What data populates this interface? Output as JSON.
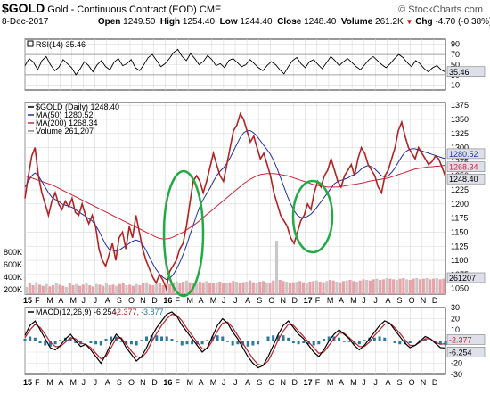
{
  "header": {
    "symbol": "$GOLD",
    "description": "Gold - Continuous Contract (EOD)",
    "exchange": "CME",
    "date": "8-Dec-2017",
    "open_label": "Open",
    "open": "1249.50",
    "high_label": "High",
    "high": "1254.40",
    "low_label": "Low",
    "low": "1244.40",
    "close_label": "Close",
    "close": "1248.40",
    "volume_label": "Volume",
    "volume": "261.2K",
    "chg_label": "Chg",
    "chg": "-4.70 (-0.38%)",
    "watermark": "© StockCharts.com",
    "up_arrow": "▼"
  },
  "colors": {
    "price": "#b22222",
    "price_up": "#000000",
    "ma50": "#1f2fa0",
    "ma200": "#d4223a",
    "volume": "#e8a3a8",
    "volume_down": "#c8c8c8",
    "macd_hist": "#2b7a9e",
    "ellipse": "#22aa44",
    "grid": "#d9d9d9",
    "tag_bg": "#dde0e8"
  },
  "chart_data": [
    {
      "type": "line",
      "title": "RSI(14) 35.46",
      "legend": [
        "RSI(14) 35.46"
      ],
      "ylim": [
        0,
        100
      ],
      "yticks": [
        10,
        30,
        50,
        70,
        90
      ],
      "reference_lines": [
        30,
        70
      ],
      "last_value_tag": "35.46",
      "series": [
        {
          "name": "RSI(14)",
          "values": [
            48,
            62,
            55,
            40,
            58,
            66,
            50,
            38,
            45,
            60,
            52,
            44,
            30,
            42,
            56,
            48,
            36,
            50,
            58,
            46,
            40,
            55,
            62,
            48,
            52,
            60,
            44,
            38,
            50,
            64,
            70,
            58,
            46,
            52,
            62,
            74,
            80,
            66,
            58,
            72,
            62,
            50,
            56,
            68,
            60,
            48,
            52,
            44,
            58,
            62,
            54,
            46,
            50,
            60,
            52,
            44,
            38,
            48,
            56,
            50,
            40,
            32,
            46,
            58,
            64,
            52,
            44,
            56,
            60,
            50,
            42,
            54,
            66,
            58,
            48,
            56,
            62,
            54,
            46,
            40,
            50,
            60,
            66,
            58,
            50,
            44,
            52,
            62,
            70,
            64,
            54,
            46,
            58,
            52,
            42,
            36,
            44,
            48,
            40,
            35.46
          ]
        }
      ]
    },
    {
      "type": "line",
      "title": "$GOLD (Daily) 1248.40",
      "legend": [
        "$GOLD (Daily) 1248.40",
        "MA(50) 1280.52",
        "MA(200) 1268.34",
        "Volume 261,207"
      ],
      "x_tick_labels": [
        "15",
        "F",
        "M",
        "A",
        "M",
        "J",
        "J",
        "A",
        "S",
        "O",
        "N",
        "D",
        "16",
        "F",
        "M",
        "A",
        "M",
        "J",
        "J",
        "A",
        "S",
        "O",
        "N",
        "D",
        "17",
        "F",
        "M",
        "A",
        "M",
        "J",
        "J",
        "A",
        "S",
        "O",
        "N",
        "D"
      ],
      "ylim": [
        1040,
        1380
      ],
      "yticks": [
        1050,
        1075,
        1100,
        1125,
        1150,
        1175,
        1200,
        1225,
        1250,
        1275,
        1300,
        1325,
        1350,
        1375
      ],
      "volume_axis_ticks": [
        "800K",
        "600K",
        "400K",
        "200K"
      ],
      "last_value_tags": [
        "1280.52",
        "1268.34",
        "1248.40",
        "261207"
      ],
      "annotations": [
        "green ellipse around late-2015/early-2016 rally",
        "green ellipse around Dec-2016/Jan-2017 rally"
      ],
      "series": [
        {
          "name": "$GOLD (Daily)",
          "values": [
            1210,
            1250,
            1285,
            1300,
            1250,
            1220,
            1200,
            1180,
            1205,
            1220,
            1200,
            1190,
            1205,
            1195,
            1210,
            1185,
            1180,
            1200,
            1180,
            1165,
            1180,
            1160,
            1120,
            1100,
            1090,
            1110,
            1130,
            1100,
            1140,
            1150,
            1120,
            1160,
            1140,
            1180,
            1150,
            1120,
            1100,
            1085,
            1070,
            1060,
            1075,
            1065,
            1050,
            1080,
            1090,
            1100,
            1120,
            1130,
            1160,
            1200,
            1240,
            1250,
            1240,
            1220,
            1240,
            1265,
            1290,
            1270,
            1250,
            1240,
            1270,
            1300,
            1330,
            1340,
            1360,
            1350,
            1330,
            1310,
            1320,
            1300,
            1280,
            1290,
            1270,
            1250,
            1220,
            1200,
            1180,
            1170,
            1160,
            1140,
            1130,
            1150,
            1170,
            1180,
            1200,
            1190,
            1220,
            1240,
            1230,
            1250,
            1260,
            1280,
            1260,
            1240,
            1230,
            1250,
            1260,
            1270,
            1250,
            1280,
            1300,
            1290,
            1270,
            1260,
            1250,
            1230,
            1220,
            1250,
            1260,
            1280,
            1300,
            1330,
            1345,
            1320,
            1300,
            1290,
            1280,
            1300,
            1290,
            1280,
            1270,
            1275,
            1285,
            1280,
            1265,
            1248.4
          ]
        },
        {
          "name": "MA(50)",
          "values": [
            1230,
            1240,
            1250,
            1255,
            1250,
            1240,
            1230,
            1220,
            1212,
            1208,
            1205,
            1200,
            1198,
            1196,
            1194,
            1190,
            1186,
            1182,
            1178,
            1174,
            1170,
            1162,
            1152,
            1140,
            1128,
            1120,
            1118,
            1116,
            1118,
            1122,
            1126,
            1130,
            1134,
            1136,
            1134,
            1128,
            1118,
            1106,
            1094,
            1084,
            1076,
            1070,
            1066,
            1068,
            1074,
            1084,
            1096,
            1110,
            1126,
            1144,
            1162,
            1180,
            1196,
            1208,
            1218,
            1228,
            1240,
            1250,
            1258,
            1264,
            1272,
            1282,
            1294,
            1306,
            1318,
            1326,
            1330,
            1330,
            1326,
            1320,
            1312,
            1304,
            1296,
            1288,
            1276,
            1262,
            1246,
            1230,
            1214,
            1200,
            1188,
            1180,
            1176,
            1176,
            1178,
            1182,
            1188,
            1196,
            1204,
            1212,
            1220,
            1228,
            1236,
            1240,
            1242,
            1244,
            1246,
            1250,
            1252,
            1256,
            1262,
            1266,
            1268,
            1266,
            1262,
            1256,
            1250,
            1248,
            1250,
            1256,
            1264,
            1274,
            1284,
            1292,
            1296,
            1298,
            1298,
            1296,
            1294,
            1292,
            1290,
            1288,
            1286,
            1284,
            1282,
            1280.52
          ]
        },
        {
          "name": "MA(200)",
          "values": [
            1250,
            1248,
            1246,
            1244,
            1242,
            1240,
            1238,
            1236,
            1234,
            1231,
            1228,
            1225,
            1222,
            1219,
            1216,
            1213,
            1210,
            1207,
            1204,
            1201,
            1198,
            1195,
            1192,
            1189,
            1186,
            1183,
            1180,
            1177,
            1174,
            1171,
            1168,
            1165,
            1162,
            1159,
            1156,
            1153,
            1150,
            1147,
            1144,
            1141,
            1139,
            1138,
            1138,
            1139,
            1141,
            1144,
            1147,
            1150,
            1154,
            1158,
            1162,
            1166,
            1171,
            1176,
            1181,
            1186,
            1191,
            1196,
            1201,
            1206,
            1211,
            1216,
            1221,
            1226,
            1231,
            1236,
            1240,
            1244,
            1247,
            1250,
            1252,
            1253,
            1254,
            1254,
            1254,
            1253,
            1252,
            1251,
            1250,
            1248,
            1246,
            1244,
            1242,
            1240,
            1238,
            1236,
            1234,
            1233,
            1232,
            1231,
            1230,
            1230,
            1230,
            1230,
            1231,
            1232,
            1233,
            1234,
            1235,
            1236,
            1237,
            1238,
            1240,
            1241,
            1242,
            1243,
            1244,
            1245,
            1246,
            1248,
            1250,
            1252,
            1254,
            1256,
            1258,
            1260,
            1262,
            1263,
            1264,
            1265,
            1266,
            1266,
            1267,
            1267,
            1268,
            1268.34
          ]
        }
      ]
    },
    {
      "type": "bar",
      "title": "Volume 261,207",
      "ylim": [
        0,
        900000
      ],
      "series": [
        {
          "name": "Volume",
          "values": [
            120000,
            180000,
            150000,
            200000,
            160000,
            140000,
            170000,
            130000,
            150000,
            190000,
            160000,
            140000,
            120000,
            180000,
            150000,
            170000,
            140000,
            160000,
            190000,
            150000,
            130000,
            170000,
            160000,
            140000,
            180000,
            150000,
            160000,
            140000,
            170000,
            190000,
            150000,
            160000,
            140000,
            170000,
            150000,
            180000,
            200000,
            160000,
            150000,
            170000,
            190000,
            150000,
            140000,
            170000,
            200000,
            220000,
            190000,
            210000,
            230000,
            200000,
            190000,
            180000,
            210000,
            200000,
            220000,
            190000,
            180000,
            200000,
            210000,
            190000,
            180000,
            200000,
            220000,
            210000,
            190000,
            200000,
            210000,
            230000,
            200000,
            190000,
            210000,
            220000,
            200000,
            190000,
            230000,
            900000,
            240000,
            220000,
            210000,
            190000,
            200000,
            210000,
            220000,
            200000,
            190000,
            210000,
            220000,
            230000,
            210000,
            200000,
            220000,
            240000,
            230000,
            210000,
            200000,
            220000,
            230000,
            240000,
            220000,
            210000,
            230000,
            250000,
            240000,
            230000,
            250000,
            260000,
            240000,
            250000,
            270000,
            260000,
            250000,
            240000,
            260000,
            270000,
            250000,
            240000,
            260000,
            270000,
            250000,
            260000,
            270000,
            250000,
            260000,
            270000,
            250000,
            261207
          ]
        }
      ]
    },
    {
      "type": "line",
      "title": "MACD(12,26,9) -6.254, -2.377, -3.877",
      "legend": [
        "MACD(12,26,9) -6.254",
        "-2.377",
        "-3.877"
      ],
      "ylim": [
        -30,
        30
      ],
      "yticks": [
        -30,
        -20,
        -10,
        0,
        10,
        20,
        30
      ],
      "last_value_tags": [
        "-2.377",
        "-6.254"
      ],
      "x_tick_labels": [
        "15",
        "F",
        "M",
        "A",
        "M",
        "J",
        "J",
        "A",
        "S",
        "O",
        "N",
        "D",
        "16",
        "F",
        "M",
        "A",
        "M",
        "J",
        "J",
        "A",
        "S",
        "O",
        "N",
        "D",
        "17",
        "F",
        "M",
        "A",
        "M",
        "J",
        "J",
        "A",
        "S",
        "O",
        "N",
        "D"
      ],
      "series": [
        {
          "name": "MACD",
          "values": [
            5,
            14,
            18,
            10,
            2,
            -6,
            -8,
            -4,
            2,
            6,
            0,
            -5,
            -3,
            -8,
            -14,
            -20,
            -12,
            -2,
            6,
            2,
            -6,
            -12,
            -18,
            -14,
            -6,
            4,
            12,
            18,
            24,
            26,
            22,
            14,
            8,
            2,
            -4,
            -10,
            -6,
            4,
            14,
            20,
            16,
            8,
            2,
            -6,
            -14,
            -20,
            -24,
            -22,
            -14,
            -4,
            6,
            14,
            18,
            12,
            6,
            2,
            -4,
            -10,
            -14,
            -8,
            0,
            6,
            10,
            6,
            2,
            -4,
            -8,
            -4,
            2,
            8,
            14,
            18,
            16,
            10,
            4,
            -2,
            -6,
            -4,
            0,
            4,
            2,
            -2,
            -6,
            -6.254
          ]
        },
        {
          "name": "Signal",
          "values": [
            3,
            10,
            15,
            12,
            6,
            -1,
            -5,
            -5,
            -1,
            3,
            2,
            -2,
            -3,
            -6,
            -11,
            -16,
            -14,
            -6,
            2,
            3,
            -3,
            -9,
            -14,
            -15,
            -10,
            -1,
            7,
            14,
            20,
            24,
            23,
            18,
            11,
            5,
            -1,
            -7,
            -7,
            0,
            9,
            16,
            17,
            12,
            5,
            -2,
            -9,
            -16,
            -21,
            -22,
            -18,
            -9,
            1,
            9,
            15,
            14,
            9,
            4,
            -1,
            -6,
            -11,
            -10,
            -4,
            2,
            7,
            7,
            3,
            -1,
            -5,
            -5,
            -1,
            5,
            10,
            15,
            16,
            12,
            7,
            1,
            -4,
            -4,
            -1,
            2,
            2,
            -1,
            -3,
            -2.377
          ]
        },
        {
          "name": "Histogram",
          "values": [
            2,
            4,
            3,
            -2,
            -4,
            -5,
            -3,
            1,
            3,
            3,
            -2,
            -3,
            0,
            -2,
            -3,
            -4,
            2,
            4,
            4,
            -1,
            -3,
            -3,
            -4,
            1,
            4,
            5,
            5,
            4,
            4,
            2,
            -1,
            -4,
            -3,
            -3,
            -3,
            -3,
            1,
            4,
            5,
            4,
            -1,
            -4,
            -3,
            -4,
            -5,
            -4,
            -3,
            0,
            4,
            5,
            5,
            5,
            3,
            -2,
            -3,
            -2,
            -3,
            -4,
            -3,
            2,
            4,
            4,
            3,
            -1,
            -1,
            -3,
            -3,
            1,
            3,
            3,
            4,
            3,
            0,
            -2,
            -3,
            -3,
            -2,
            0,
            1,
            2,
            0,
            -1,
            -3,
            -3.877
          ]
        }
      ]
    }
  ]
}
